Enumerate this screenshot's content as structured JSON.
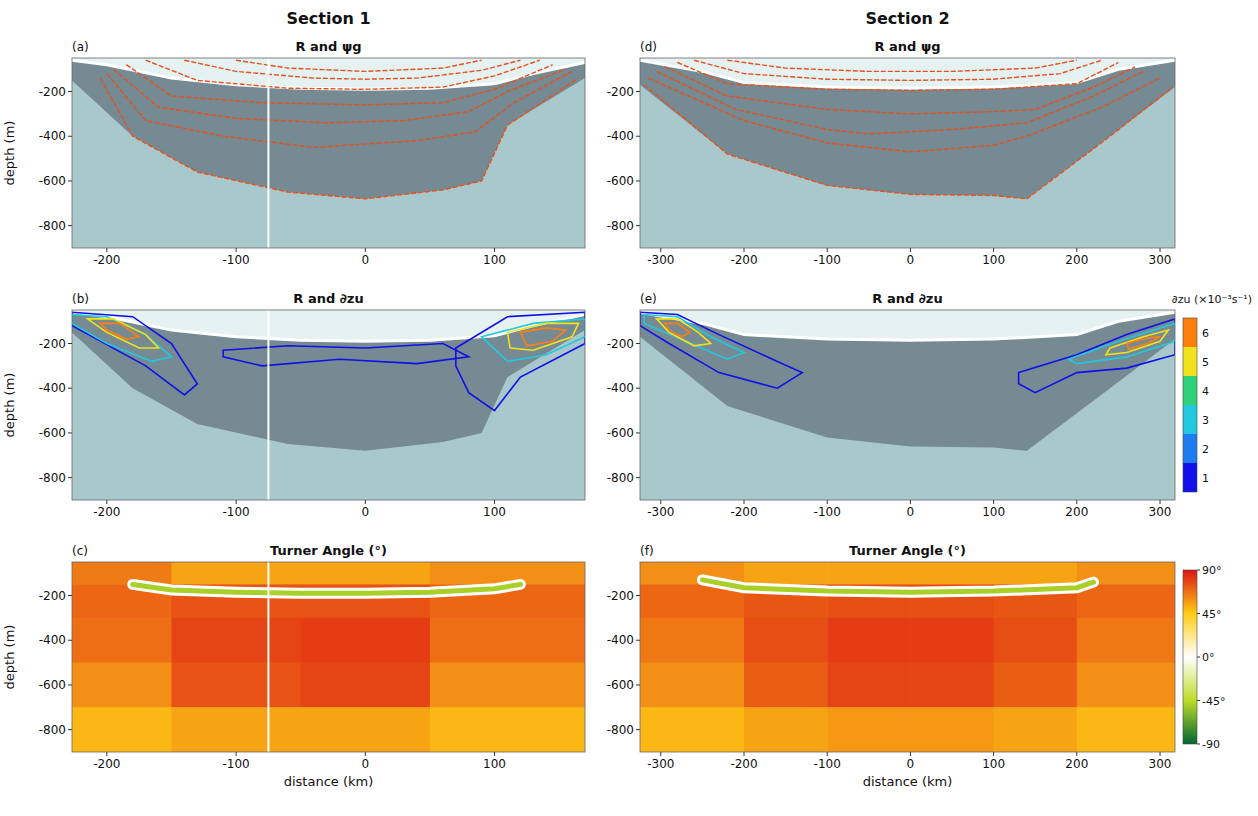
{
  "chart_data": [
    {
      "type": "contour",
      "letter": "(a)",
      "title": "R and ψg",
      "column_title": "Section 1",
      "y_label": "depth (m)",
      "xlim": [
        -227,
        170
      ],
      "ylim": [
        -900,
        -50
      ],
      "xticks": [
        -200,
        -100,
        0,
        100
      ],
      "yticks": [
        -800,
        -600,
        -400,
        -200
      ],
      "gap_x": -75,
      "lens": {
        "x": [
          -227,
          -200,
          -150,
          -100,
          -50,
          0,
          50,
          100,
          130,
          170
        ],
        "y": [
          -60,
          -80,
          -140,
          -170,
          -185,
          -190,
          -185,
          -165,
          -120,
          -70
        ]
      },
      "bowl": {
        "x": [
          -227,
          -180,
          -130,
          -60,
          0,
          60,
          90,
          110,
          170
        ],
        "y": [
          -150,
          -400,
          -560,
          -650,
          -680,
          -640,
          -600,
          -350,
          -140
        ]
      },
      "contours": [
        {
          "x": [
            -100,
            -60,
            0,
            60,
            90
          ],
          "y": [
            -60,
            -95,
            -110,
            -95,
            -60
          ]
        },
        {
          "x": [
            -140,
            -100,
            -40,
            0,
            40,
            90,
            120
          ],
          "y": [
            -60,
            -110,
            -140,
            -145,
            -140,
            -105,
            -60
          ]
        },
        {
          "x": [
            -170,
            -130,
            -60,
            0,
            60,
            100,
            135
          ],
          "y": [
            -60,
            -150,
            -185,
            -190,
            -180,
            -130,
            -60
          ]
        },
        {
          "x": [
            -185,
            -150,
            -80,
            0,
            60,
            100,
            145
          ],
          "y": [
            -80,
            -220,
            -250,
            -260,
            -250,
            -190,
            -80
          ]
        },
        {
          "x": [
            -195,
            -160,
            -100,
            -30,
            30,
            80,
            110,
            155
          ],
          "y": [
            -100,
            -270,
            -320,
            -340,
            -330,
            -290,
            -200,
            -100
          ]
        },
        {
          "x": [
            -200,
            -170,
            -110,
            -40,
            40,
            85,
            115,
            160
          ],
          "y": [
            -120,
            -330,
            -400,
            -450,
            -420,
            -380,
            -250,
            -110
          ]
        },
        {
          "x": [
            -205,
            -180,
            -130,
            -60,
            0,
            60,
            90,
            110,
            165
          ],
          "y": [
            -140,
            -400,
            -560,
            -650,
            -680,
            -640,
            -600,
            -350,
            -140
          ]
        }
      ]
    },
    {
      "type": "contour",
      "letter": "(b)",
      "title": "R and ∂zu",
      "y_label": "depth (m)",
      "xlim": [
        -227,
        170
      ],
      "ylim": [
        -900,
        -50
      ],
      "xticks": [
        -200,
        -100,
        0,
        100
      ],
      "yticks": [
        -800,
        -600,
        -400,
        -200
      ],
      "gap_x": -75,
      "lens": {
        "x": [
          -227,
          -200,
          -150,
          -100,
          -50,
          0,
          50,
          100,
          130,
          170
        ],
        "y": [
          -60,
          -80,
          -140,
          -170,
          -185,
          -190,
          -185,
          -165,
          -120,
          -70
        ]
      },
      "bowl": {
        "x": [
          -227,
          -180,
          -130,
          -60,
          0,
          60,
          90,
          110,
          170
        ],
        "y": [
          -150,
          -400,
          -560,
          -650,
          -680,
          -640,
          -600,
          -350,
          -140
        ]
      },
      "contours": [
        {
          "level": 1,
          "x": [
            -227,
            -180,
            -150,
            -130,
            -140,
            -170,
            -227
          ],
          "y": [
            -60,
            -80,
            -200,
            -380,
            -430,
            -300,
            -120
          ]
        },
        {
          "level": 1,
          "x": [
            -110,
            -60,
            0,
            60,
            80,
            40,
            -20,
            -80,
            -110
          ],
          "y": [
            -230,
            -210,
            -220,
            -200,
            -260,
            -290,
            -270,
            -300,
            -260
          ]
        },
        {
          "level": 1,
          "x": [
            70,
            110,
            170,
            170,
            120,
            100,
            80,
            70
          ],
          "y": [
            -220,
            -80,
            -60,
            -200,
            -350,
            -500,
            -420,
            -300
          ]
        },
        {
          "level": 3,
          "x": [
            -227,
            -200,
            -170,
            -150,
            -165,
            -200,
            -227
          ],
          "y": [
            -70,
            -80,
            -160,
            -260,
            -280,
            -200,
            -110
          ]
        },
        {
          "level": 3,
          "x": [
            90,
            130,
            170,
            170,
            140,
            110
          ],
          "y": [
            -170,
            -110,
            -90,
            -170,
            -250,
            -280
          ]
        },
        {
          "level": 5,
          "x": [
            -215,
            -195,
            -170,
            -160,
            -175,
            -200
          ],
          "y": [
            -90,
            -90,
            -160,
            -220,
            -220,
            -150
          ]
        },
        {
          "level": 5,
          "x": [
            110,
            140,
            165,
            160,
            130,
            112
          ],
          "y": [
            -150,
            -110,
            -110,
            -170,
            -230,
            -220
          ]
        },
        {
          "level": 6,
          "x": [
            -205,
            -190,
            -175,
            -185,
            -200
          ],
          "y": [
            -110,
            -110,
            -170,
            -180,
            -140
          ]
        },
        {
          "level": 6,
          "x": [
            120,
            140,
            155,
            145,
            125
          ],
          "y": [
            -150,
            -130,
            -140,
            -190,
            -210
          ]
        }
      ]
    },
    {
      "type": "heatmap",
      "letter": "(c)",
      "title": "Turner Angle (°)",
      "y_label": "depth (m)",
      "x_label": "distance (km)",
      "xlim": [
        -227,
        170
      ],
      "ylim": [
        -900,
        -50
      ],
      "xticks": [
        -200,
        -100,
        0,
        100
      ],
      "yticks": [
        -800,
        -600,
        -400,
        -200
      ],
      "gap_x": -75,
      "x_edges": [
        -227,
        -150,
        -50,
        50,
        170
      ],
      "y_edges": [
        -50,
        -150,
        -300,
        -500,
        -700,
        -900
      ],
      "values": [
        [
          65,
          55,
          55,
          60
        ],
        [
          70,
          75,
          75,
          70
        ],
        [
          68,
          78,
          80,
          68
        ],
        [
          60,
          75,
          78,
          60
        ],
        [
          50,
          55,
          55,
          50
        ]
      ],
      "band": {
        "value": -50,
        "x": [
          -180,
          -150,
          -100,
          -50,
          0,
          50,
          100,
          120
        ],
        "y": [
          -150,
          -175,
          -185,
          -190,
          -190,
          -185,
          -170,
          -150
        ]
      }
    },
    {
      "type": "contour",
      "letter": "(d)",
      "title": "R and ψg",
      "column_title": "Section 2",
      "xlim": [
        -325,
        318
      ],
      "ylim": [
        -900,
        -50
      ],
      "xticks": [
        -300,
        -200,
        -100,
        0,
        100,
        200,
        300
      ],
      "yticks": [
        -800,
        -600,
        -400,
        -200
      ],
      "lens": {
        "x": [
          -325,
          -250,
          -200,
          -100,
          0,
          100,
          200,
          250,
          318
        ],
        "y": [
          -60,
          -110,
          -160,
          -180,
          -185,
          -180,
          -160,
          -100,
          -60
        ]
      },
      "bowl": {
        "x": [
          -325,
          -220,
          -100,
          0,
          100,
          140,
          240,
          318
        ],
        "y": [
          -170,
          -480,
          -620,
          -660,
          -665,
          -680,
          -400,
          -180
        ]
      },
      "contours": [
        {
          "x": [
            -220,
            -150,
            -50,
            50,
            150,
            200
          ],
          "y": [
            -60,
            -95,
            -110,
            -110,
            -95,
            -60
          ]
        },
        {
          "x": [
            -260,
            -200,
            -100,
            0,
            100,
            180,
            230
          ],
          "y": [
            -60,
            -120,
            -145,
            -150,
            -145,
            -120,
            -60
          ]
        },
        {
          "x": [
            -280,
            -220,
            -100,
            0,
            100,
            200,
            250
          ],
          "y": [
            -70,
            -165,
            -190,
            -195,
            -190,
            -165,
            -70
          ]
        },
        {
          "x": [
            -295,
            -220,
            -100,
            0,
            100,
            150,
            220,
            270
          ],
          "y": [
            -90,
            -220,
            -280,
            -300,
            -290,
            -280,
            -180,
            -90
          ]
        },
        {
          "x": [
            -305,
            -210,
            -100,
            -50,
            50,
            140,
            220,
            280
          ],
          "y": [
            -110,
            -280,
            -370,
            -390,
            -370,
            -340,
            -220,
            -110
          ]
        },
        {
          "x": [
            -315,
            -200,
            -100,
            0,
            100,
            140,
            230,
            300
          ],
          "y": [
            -140,
            -330,
            -430,
            -470,
            -440,
            -400,
            -270,
            -140
          ]
        },
        {
          "x": [
            -320,
            -220,
            -100,
            0,
            100,
            140,
            240,
            315
          ],
          "y": [
            -170,
            -480,
            -620,
            -660,
            -665,
            -680,
            -400,
            -180
          ]
        }
      ]
    },
    {
      "type": "contour",
      "letter": "(e)",
      "title": "R and ∂zu",
      "xlim": [
        -325,
        318
      ],
      "ylim": [
        -900,
        -50
      ],
      "xticks": [
        -300,
        -200,
        -100,
        0,
        100,
        200,
        300
      ],
      "yticks": [
        -800,
        -600,
        -400,
        -200
      ],
      "lens": {
        "x": [
          -325,
          -250,
          -200,
          -100,
          0,
          100,
          200,
          250,
          318
        ],
        "y": [
          -60,
          -110,
          -160,
          -180,
          -185,
          -180,
          -160,
          -100,
          -60
        ]
      },
      "bowl": {
        "x": [
          -325,
          -220,
          -100,
          0,
          100,
          140,
          240,
          318
        ],
        "y": [
          -170,
          -480,
          -620,
          -660,
          -665,
          -680,
          -400,
          -180
        ]
      },
      "contours": [
        {
          "level": 1,
          "x": [
            -325,
            -280,
            -230,
            -160,
            -130,
            -160,
            -230,
            -290,
            -325
          ],
          "y": [
            -60,
            -70,
            -160,
            -280,
            -330,
            -400,
            -330,
            -200,
            -120
          ]
        },
        {
          "level": 1,
          "x": [
            130,
            200,
            260,
            318,
            318,
            260,
            200,
            150,
            130
          ],
          "y": [
            -330,
            -250,
            -160,
            -90,
            -250,
            -310,
            -330,
            -420,
            -380
          ]
        },
        {
          "level": 3,
          "x": [
            -320,
            -280,
            -240,
            -200,
            -220,
            -270,
            -320
          ],
          "y": [
            -70,
            -80,
            -170,
            -240,
            -270,
            -190,
            -110
          ]
        },
        {
          "level": 3,
          "x": [
            190,
            250,
            300,
            318,
            318,
            260,
            200
          ],
          "y": [
            -270,
            -190,
            -130,
            -110,
            -190,
            -260,
            -290
          ]
        },
        {
          "level": 5,
          "x": [
            -305,
            -280,
            -255,
            -240,
            -260,
            -290
          ],
          "y": [
            -90,
            -90,
            -150,
            -200,
            -210,
            -150
          ]
        },
        {
          "level": 5,
          "x": [
            240,
            280,
            310,
            300,
            260,
            235
          ],
          "y": [
            -220,
            -170,
            -140,
            -190,
            -240,
            -250
          ]
        },
        {
          "level": 6,
          "x": [
            -295,
            -280,
            -265,
            -275,
            -290
          ],
          "y": [
            -110,
            -110,
            -150,
            -170,
            -140
          ]
        },
        {
          "level": 6,
          "x": [
            260,
            285,
            300,
            285,
            262
          ],
          "y": [
            -200,
            -175,
            -170,
            -200,
            -225
          ]
        }
      ],
      "colorbar": {
        "label": "∂zu (×10⁻³s⁻¹)",
        "lim": [
          0.5,
          6.5
        ],
        "ticks": [
          1,
          2,
          3,
          4,
          5,
          6
        ],
        "colors": [
          "#1010e8",
          "#1e7cf0",
          "#22c8e0",
          "#2fd27a",
          "#f2e21c",
          "#ff7f0e"
        ]
      }
    },
    {
      "type": "heatmap",
      "letter": "(f)",
      "title": "Turner Angle (°)",
      "x_label": "distance (km)",
      "xlim": [
        -325,
        318
      ],
      "ylim": [
        -900,
        -50
      ],
      "xticks": [
        -300,
        -200,
        -100,
        0,
        100,
        200,
        300
      ],
      "yticks": [
        -800,
        -600,
        -400,
        -200
      ],
      "x_edges": [
        -325,
        -200,
        -100,
        0,
        100,
        200,
        318
      ],
      "y_edges": [
        -50,
        -150,
        -300,
        -500,
        -700,
        -900
      ],
      "values": [
        [
          60,
          55,
          55,
          55,
          55,
          60
        ],
        [
          70,
          74,
          76,
          76,
          74,
          70
        ],
        [
          66,
          76,
          80,
          80,
          76,
          66
        ],
        [
          60,
          72,
          78,
          78,
          72,
          60
        ],
        [
          50,
          55,
          58,
          58,
          55,
          50
        ]
      ],
      "band": {
        "value": -50,
        "x": [
          -250,
          -200,
          -100,
          0,
          100,
          200,
          220
        ],
        "y": [
          -130,
          -165,
          -180,
          -185,
          -180,
          -165,
          -140
        ]
      },
      "colorbar": {
        "lim": [
          -90,
          90
        ],
        "ticks": [
          {
            "value": 90,
            "label": "90°"
          },
          {
            "value": 45,
            "label": "45°"
          },
          {
            "value": 0,
            "label": "0°"
          },
          {
            "value": -45,
            "label": "-45°"
          },
          {
            "value": -90,
            "label": "-90"
          }
        ]
      }
    }
  ]
}
